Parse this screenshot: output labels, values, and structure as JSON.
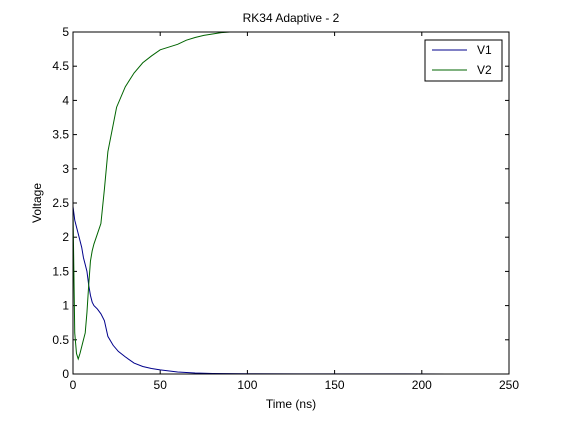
{
  "chart_data": {
    "type": "line",
    "title": "RK34 Adaptive - 2",
    "xlabel": "Time (ns)",
    "ylabel": "Voltage",
    "xlim": [
      0,
      250
    ],
    "ylim": [
      0,
      5
    ],
    "xticks": [
      0,
      50,
      100,
      150,
      200,
      250
    ],
    "yticks": [
      0,
      0.5,
      1,
      1.5,
      2,
      2.5,
      3,
      3.5,
      4,
      4.5,
      5
    ],
    "xtick_labels": [
      "0",
      "50",
      "100",
      "150",
      "200",
      "250"
    ],
    "ytick_labels": [
      "0",
      "0.5",
      "1",
      "1.5",
      "2",
      "2.5",
      "3",
      "3.5",
      "4",
      "4.5",
      "5"
    ],
    "grid": false,
    "legend_position": "top-right",
    "series": [
      {
        "name": "V1",
        "color": "#00008b",
        "x": [
          0,
          0.5,
          1,
          2,
          3,
          4,
          5,
          6,
          7,
          8,
          9,
          10,
          11,
          12,
          14,
          16,
          18,
          20,
          23,
          26,
          30,
          35,
          40,
          45,
          50,
          60,
          70,
          80,
          100,
          130,
          160,
          190,
          215,
          228
        ],
        "y": [
          2.45,
          2.35,
          2.25,
          2.15,
          2.05,
          1.95,
          1.85,
          1.7,
          1.6,
          1.5,
          1.3,
          1.15,
          1.05,
          1.0,
          0.95,
          0.88,
          0.78,
          0.55,
          0.42,
          0.33,
          0.25,
          0.16,
          0.11,
          0.08,
          0.06,
          0.03,
          0.015,
          0.008,
          0.004,
          0.002,
          0.001,
          0.001,
          0.0,
          0.0
        ]
      },
      {
        "name": "V2",
        "color": "#006400",
        "x": [
          0,
          1,
          2,
          3,
          4,
          5,
          6,
          7,
          8,
          9,
          10,
          11,
          12,
          14,
          16,
          18,
          20,
          25,
          30,
          35,
          40,
          45,
          50,
          55,
          60,
          65,
          70,
          75,
          80,
          85,
          90
        ],
        "y": [
          2.4,
          0.6,
          0.3,
          0.22,
          0.3,
          0.4,
          0.5,
          0.6,
          0.9,
          1.3,
          1.65,
          1.8,
          1.9,
          2.05,
          2.2,
          2.7,
          3.25,
          3.9,
          4.2,
          4.4,
          4.55,
          4.65,
          4.74,
          4.78,
          4.82,
          4.88,
          4.92,
          4.95,
          4.97,
          4.99,
          5.0
        ]
      }
    ]
  }
}
